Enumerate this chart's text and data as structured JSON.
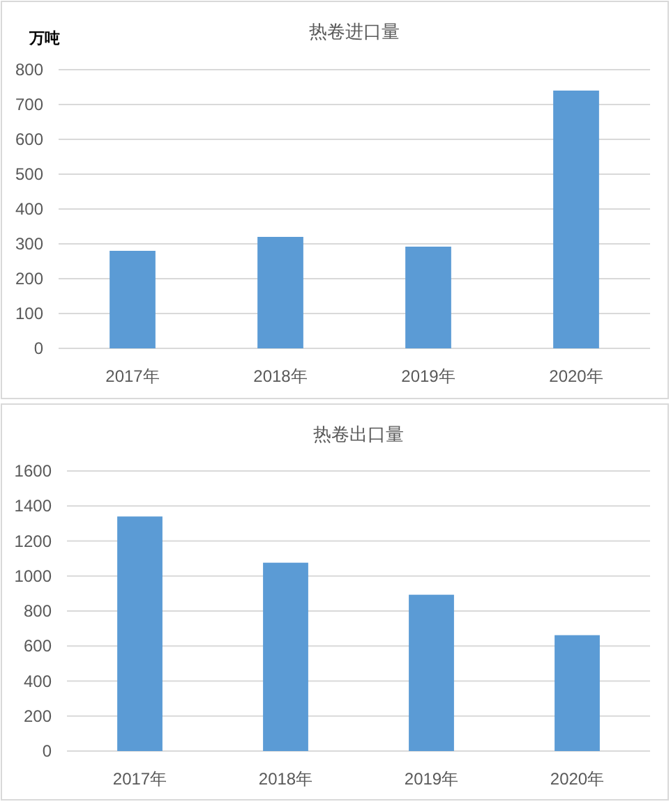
{
  "chart_data": [
    {
      "type": "bar",
      "title": "热卷进口量",
      "ylabel": "万吨",
      "categories": [
        "2017年",
        "2018年",
        "2019年",
        "2020年"
      ],
      "values": [
        280,
        320,
        292,
        740
      ],
      "color": "#5b9bd5",
      "ylim": [
        0,
        800
      ],
      "yticks": [
        0,
        100,
        200,
        300,
        400,
        500,
        600,
        700,
        800
      ],
      "grid": "y"
    },
    {
      "type": "bar",
      "title": "热卷出口量",
      "categories": [
        "2017年",
        "2018年",
        "2019年",
        "2020年"
      ],
      "values": [
        1340,
        1076,
        893,
        662
      ],
      "color": "#5b9bd5",
      "ylim": [
        0,
        1600
      ],
      "yticks": [
        0,
        200,
        400,
        600,
        800,
        1000,
        1200,
        1400,
        1600
      ],
      "grid": "y"
    }
  ]
}
